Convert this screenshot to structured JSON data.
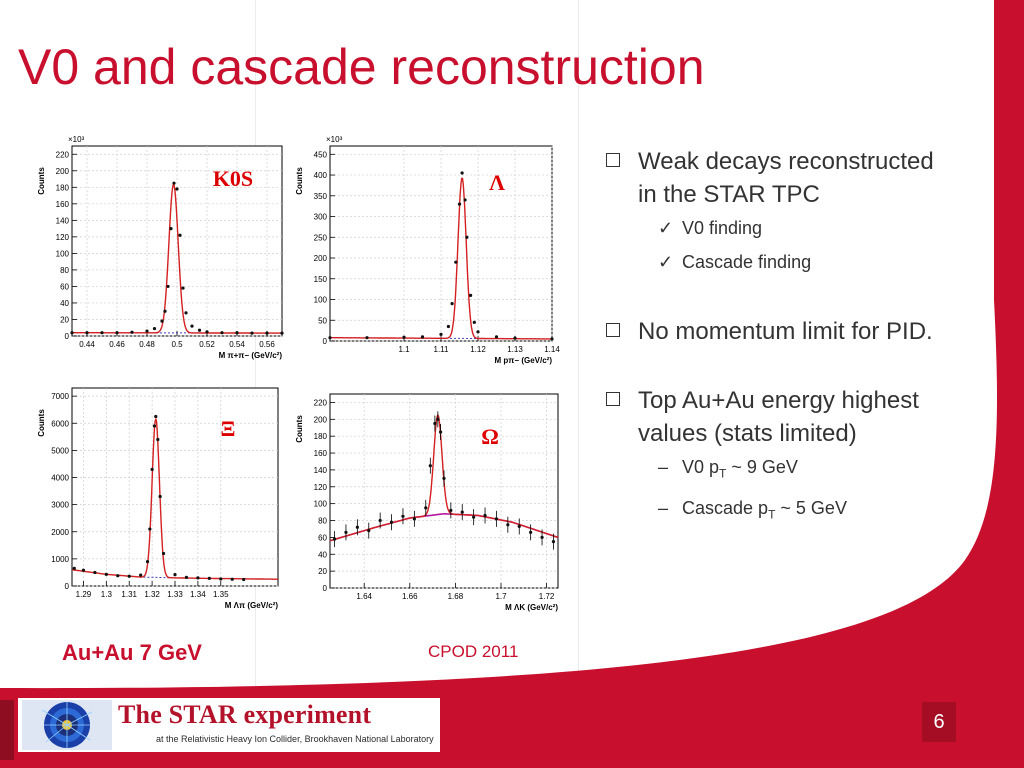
{
  "title": "V0 and cascade reconstruction",
  "bullets": [
    {
      "text": "Weak decays reconstructed in the STAR TPC",
      "subs": [
        "V0 finding",
        "Cascade finding"
      ]
    },
    {
      "text": "No momentum limit for PID.",
      "subs": []
    },
    {
      "text": "Top Au+Au energy highest values (stats limited)",
      "subs": [
        "V0 pT ~ 9 GeV",
        "Cascade pT ~ 5 GeV"
      ]
    }
  ],
  "sub_bullets": {
    "v0_finding": "V0 finding",
    "cascade_finding": "Cascade finding",
    "v0_pt_prefix": "V0 p",
    "v0_pt_sub": "T",
    "v0_pt_suffix": " ~ 9 GeV",
    "cascade_pt_prefix": "Cascade p",
    "cascade_pt_sub": "T",
    "cascade_pt_suffix": " ~ 5 GeV"
  },
  "bullet_texts": {
    "b1": "Weak decays reconstructed in the STAR TPC",
    "b2": "No momentum limit for PID.",
    "b3": "Top Au+Au energy highest values (stats limited)"
  },
  "caption_left": "Au+Au 7 GeV",
  "caption_right": "CPOD 2011",
  "footer": {
    "logo_title": "The STAR experiment",
    "logo_subtitle": "at the Relativistic Heavy Ion Collider, Brookhaven National Laboratory",
    "page_number": "6"
  },
  "colors": {
    "accent": "#c8102e",
    "fit": "#d42020",
    "background_fit": "#b5179e",
    "background_dash": "#4040c0",
    "data_point": "#111111",
    "grid": "#cfcfcf"
  },
  "chart_data": [
    {
      "id": "k0s",
      "type": "scatter",
      "label": "K0S",
      "ylabel": "Counts",
      "y_multiplier": "×10³",
      "xlabel": "M π+π− (GeV/c²)",
      "xlim": [
        0.43,
        0.57
      ],
      "ylim": [
        0,
        230
      ],
      "xticks": [
        0.44,
        0.46,
        0.48,
        0.5,
        0.52,
        0.54,
        0.56
      ],
      "xtick_labels": [
        "0.44",
        "0.46",
        "0.48",
        "0.5",
        "0.52",
        "0.54",
        "0.56"
      ],
      "yticks": [
        0,
        20,
        40,
        60,
        80,
        100,
        120,
        140,
        160,
        180,
        200,
        220
      ],
      "peak": {
        "x": 0.4977,
        "amplitude": 180,
        "width": 0.0031
      },
      "background": {
        "x": [
          0.43,
          0.57
        ],
        "y": [
          4,
          3.5
        ]
      },
      "x": [
        0.43,
        0.44,
        0.45,
        0.46,
        0.47,
        0.48,
        0.485,
        0.49,
        0.492,
        0.494,
        0.496,
        0.498,
        0.5,
        0.502,
        0.504,
        0.506,
        0.51,
        0.515,
        0.52,
        0.53,
        0.54,
        0.55,
        0.56,
        0.57
      ],
      "y": [
        4,
        4,
        4,
        4,
        4.5,
        6,
        9,
        18,
        30,
        60,
        130,
        185,
        178,
        122,
        58,
        28,
        12,
        7,
        5,
        4,
        4,
        3.5,
        3.5,
        3.5
      ]
    },
    {
      "id": "lambda",
      "type": "scatter",
      "label": "Λ",
      "ylabel": "Counts",
      "y_multiplier": "×10³",
      "xlabel": "M pπ− (GeV/c²)",
      "xlim": [
        1.08,
        1.14
      ],
      "ylim": [
        0,
        470
      ],
      "xticks": [
        1.1,
        1.11,
        1.12,
        1.13,
        1.14
      ],
      "xtick_labels": [
        "1.1",
        "1.11",
        "1.12",
        "1.13",
        "1.14"
      ],
      "yticks": [
        0,
        50,
        100,
        150,
        200,
        250,
        300,
        350,
        400,
        450
      ],
      "peak": {
        "x": 1.1157,
        "amplitude": 387,
        "width": 0.0011
      },
      "background": {
        "x": [
          1.08,
          1.14
        ],
        "y": [
          8,
          5
        ]
      },
      "x": [
        1.08,
        1.09,
        1.1,
        1.105,
        1.11,
        1.112,
        1.113,
        1.114,
        1.115,
        1.1157,
        1.1165,
        1.117,
        1.118,
        1.119,
        1.12,
        1.125,
        1.13,
        1.14
      ],
      "y": [
        8,
        8,
        9,
        10,
        16,
        35,
        90,
        190,
        330,
        405,
        340,
        250,
        110,
        45,
        22,
        10,
        7,
        5
      ]
    },
    {
      "id": "xi",
      "type": "scatter",
      "label": "Ξ",
      "ylabel": "Counts",
      "xlabel": "M Λπ (GeV/c²)",
      "xlim": [
        1.285,
        1.375
      ],
      "ylim": [
        0,
        7300
      ],
      "xticks": [
        1.29,
        1.3,
        1.31,
        1.32,
        1.33,
        1.34,
        1.35
      ],
      "xtick_labels": [
        "1.29",
        "1.3",
        "1.31",
        "1.32",
        "1.33",
        "1.34",
        "1.35"
      ],
      "yticks": [
        0,
        1000,
        2000,
        3000,
        4000,
        5000,
        6000,
        7000
      ],
      "peak": {
        "x": 1.3216,
        "amplitude": 5850,
        "width": 0.0016
      },
      "background": {
        "x": [
          1.285,
          1.3,
          1.315,
          1.33,
          1.345,
          1.375
        ],
        "y": [
          600,
          430,
          330,
          300,
          280,
          250
        ]
      },
      "x": [
        1.286,
        1.29,
        1.295,
        1.3,
        1.305,
        1.31,
        1.315,
        1.318,
        1.319,
        1.32,
        1.321,
        1.3216,
        1.3225,
        1.3235,
        1.325,
        1.33,
        1.335,
        1.34,
        1.345,
        1.35,
        1.355,
        1.36
      ],
      "y": [
        650,
        580,
        500,
        430,
        380,
        360,
        400,
        900,
        2100,
        4300,
        5900,
        6250,
        5400,
        3300,
        1200,
        420,
        320,
        300,
        280,
        260,
        250,
        240
      ]
    },
    {
      "id": "omega",
      "type": "scatter",
      "label": "Ω",
      "ylabel": "Counts",
      "xlabel": "M ΛK (GeV/c²)",
      "xlim": [
        1.625,
        1.725
      ],
      "ylim": [
        0,
        230
      ],
      "xticks": [
        1.64,
        1.66,
        1.68,
        1.7,
        1.72
      ],
      "xtick_labels": [
        "1.64",
        "1.66",
        "1.68",
        "1.7",
        "1.72"
      ],
      "yticks": [
        0,
        20,
        40,
        60,
        80,
        100,
        120,
        140,
        160,
        180,
        200,
        220
      ],
      "peak": {
        "x": 1.6723,
        "amplitude": 118,
        "width": 0.0018
      },
      "background": {
        "x": [
          1.625,
          1.645,
          1.66,
          1.675,
          1.69,
          1.705,
          1.725
        ],
        "y": [
          56,
          72,
          83,
          88,
          86,
          78,
          60
        ]
      },
      "x": [
        1.627,
        1.632,
        1.637,
        1.642,
        1.647,
        1.652,
        1.657,
        1.662,
        1.667,
        1.669,
        1.671,
        1.6723,
        1.6735,
        1.675,
        1.678,
        1.683,
        1.688,
        1.693,
        1.698,
        1.703,
        1.708,
        1.713,
        1.718,
        1.723
      ],
      "y": [
        58,
        66,
        72,
        68,
        80,
        78,
        85,
        82,
        95,
        145,
        195,
        200,
        185,
        130,
        92,
        90,
        84,
        86,
        82,
        75,
        73,
        66,
        60,
        55
      ]
    }
  ]
}
